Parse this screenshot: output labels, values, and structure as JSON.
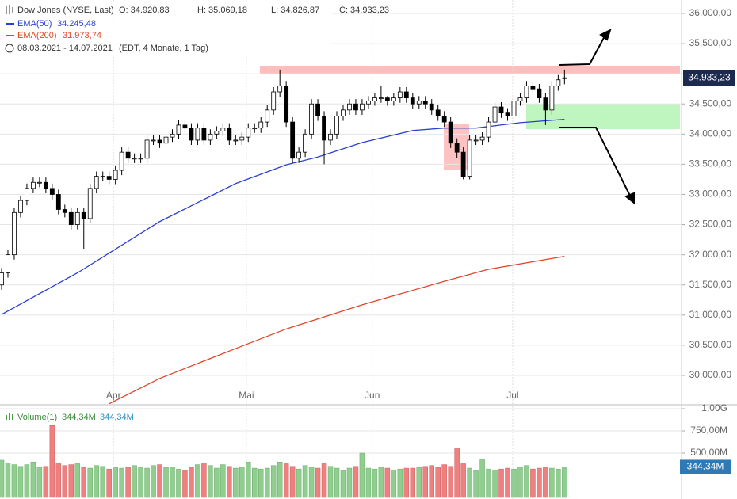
{
  "chart_data": [
    {
      "type": "candlestick",
      "title": "Dow Jones (NYSE, Last)",
      "ohlc_labels": [
        "O: 34.920,83",
        "H: 35.069,18",
        "L: 34.826,87",
        "C: 34.933,23"
      ],
      "period": "08.03.2021 - 14.07.2021",
      "period_note": "(EDT, 4 Monate, 1 Tag)",
      "last_label": "34.933,23",
      "up_color": "#ffffff",
      "down_color": "#000000",
      "candles": [
        [
          31500,
          31780,
          31420,
          31700
        ],
        [
          31700,
          32080,
          31620,
          32000
        ],
        [
          32000,
          32780,
          31920,
          32700
        ],
        [
          32700,
          32980,
          32620,
          32900
        ],
        [
          32900,
          33180,
          32820,
          33100
        ],
        [
          33100,
          33280,
          33020,
          33200
        ],
        [
          33200,
          33280,
          33120,
          33200
        ],
        [
          33200,
          33280,
          33020,
          33100
        ],
        [
          33100,
          33180,
          32920,
          33000
        ],
        [
          33000,
          33080,
          32670,
          32750
        ],
        [
          32750,
          32830,
          32620,
          32700
        ],
        [
          32700,
          32780,
          32420,
          32500
        ],
        [
          32500,
          32780,
          32420,
          32700
        ],
        [
          32700,
          32780,
          32100,
          32600
        ],
        [
          32600,
          33180,
          32520,
          33100
        ],
        [
          33100,
          33380,
          33020,
          33300
        ],
        [
          33300,
          33380,
          33220,
          33300
        ],
        [
          33300,
          33380,
          33170,
          33250
        ],
        [
          33250,
          33480,
          33170,
          33400
        ],
        [
          33400,
          33780,
          33320,
          33700
        ],
        [
          33700,
          33780,
          33520,
          33600
        ],
        [
          33600,
          33680,
          33520,
          33600
        ],
        [
          33600,
          33680,
          33520,
          33600
        ],
        [
          33600,
          33980,
          33520,
          33900
        ],
        [
          33900,
          33980,
          33820,
          33900
        ],
        [
          33900,
          33980,
          33770,
          33850
        ],
        [
          33850,
          34030,
          33770,
          33950
        ],
        [
          33950,
          34080,
          33870,
          34000
        ],
        [
          34000,
          34230,
          33920,
          34150
        ],
        [
          34150,
          34230,
          34020,
          34100
        ],
        [
          34100,
          34180,
          33820,
          33900
        ],
        [
          33900,
          34180,
          33820,
          34100
        ],
        [
          34100,
          34180,
          33820,
          33900
        ],
        [
          33900,
          34080,
          33820,
          34000
        ],
        [
          34000,
          34130,
          33920,
          34050
        ],
        [
          34050,
          34180,
          33970,
          34100
        ],
        [
          34100,
          34180,
          33820,
          33900
        ],
        [
          33900,
          33980,
          33820,
          33900
        ],
        [
          33900,
          34030,
          33820,
          33950
        ],
        [
          33950,
          34180,
          33870,
          34100
        ],
        [
          34100,
          34180,
          34020,
          34100
        ],
        [
          34100,
          34280,
          34020,
          34200
        ],
        [
          34200,
          34480,
          34120,
          34400
        ],
        [
          34400,
          34780,
          34320,
          34700
        ],
        [
          34700,
          35070,
          34620,
          34800
        ],
        [
          34800,
          34880,
          34120,
          34200
        ],
        [
          34200,
          34280,
          33520,
          33600
        ],
        [
          33600,
          33780,
          33520,
          33700
        ],
        [
          33700,
          34080,
          33620,
          34000
        ],
        [
          34000,
          34580,
          33920,
          34500
        ],
        [
          34500,
          34580,
          34220,
          34300
        ],
        [
          34300,
          34380,
          33500,
          33900
        ],
        [
          33900,
          34080,
          33820,
          34000
        ],
        [
          34000,
          34380,
          33920,
          34300
        ],
        [
          34300,
          34480,
          34220,
          34400
        ],
        [
          34400,
          34580,
          34320,
          34500
        ],
        [
          34500,
          34580,
          34320,
          34400
        ],
        [
          34400,
          34580,
          34320,
          34500
        ],
        [
          34500,
          34630,
          34420,
          34550
        ],
        [
          34550,
          34680,
          34470,
          34600
        ],
        [
          34600,
          34800,
          34520,
          34600
        ],
        [
          34600,
          34630,
          34470,
          34550
        ],
        [
          34550,
          34680,
          34470,
          34600
        ],
        [
          34600,
          34780,
          34520,
          34700
        ],
        [
          34700,
          34780,
          34520,
          34600
        ],
        [
          34600,
          34680,
          34420,
          34500
        ],
        [
          34500,
          34630,
          34420,
          34550
        ],
        [
          34550,
          34630,
          34420,
          34500
        ],
        [
          34500,
          34580,
          34320,
          34400
        ],
        [
          34400,
          34480,
          34220,
          34300
        ],
        [
          34300,
          34380,
          34120,
          34200
        ],
        [
          34200,
          34280,
          33770,
          33850
        ],
        [
          33850,
          33930,
          33600,
          33700
        ],
        [
          33700,
          33780,
          33250,
          33300
        ],
        [
          33300,
          33980,
          33250,
          33900
        ],
        [
          33900,
          33980,
          33820,
          33900
        ],
        [
          33900,
          34030,
          33820,
          33950
        ],
        [
          33950,
          34280,
          33870,
          34200
        ],
        [
          34200,
          34530,
          34120,
          34450
        ],
        [
          34450,
          34530,
          34270,
          34350
        ],
        [
          34350,
          34430,
          34220,
          34300
        ],
        [
          34300,
          34630,
          34220,
          34550
        ],
        [
          34550,
          34680,
          34470,
          34600
        ],
        [
          34600,
          34880,
          34520,
          34800
        ],
        [
          34800,
          34880,
          34670,
          34750
        ],
        [
          34750,
          34830,
          34520,
          34600
        ],
        [
          34600,
          34680,
          34150,
          34400
        ],
        [
          34400,
          34880,
          34320,
          34800
        ],
        [
          34800,
          34980,
          34720,
          34900
        ],
        [
          34920.83,
          35069.18,
          34826.87,
          34933.23
        ]
      ],
      "series": [
        {
          "name": "EMA(50)",
          "color": "#2a3fd0",
          "value_label": "34.245,48",
          "x": [
            0,
            12,
            25,
            37,
            45,
            50,
            57,
            65,
            70,
            75,
            82,
            89
          ],
          "values": [
            31010,
            31700,
            32550,
            33180,
            33490,
            33620,
            33860,
            34060,
            34100,
            34100,
            34190,
            34245.48
          ]
        },
        {
          "name": "EMA(200)",
          "color": "#e0452a",
          "value_label": "31.973,74",
          "x": [
            17,
            25,
            37,
            45,
            57,
            70,
            77,
            89
          ],
          "values": [
            29530,
            29950,
            30445,
            30770,
            31170,
            31560,
            31760,
            31973.74
          ]
        }
      ],
      "xlim": [
        -0.25,
        107.5
      ],
      "ylim": [
        29527,
        36223
      ],
      "xticks": [
        {
          "value": 17.7,
          "label": "Apr"
        },
        {
          "value": 38.7,
          "label": "Mai"
        },
        {
          "value": 58.6,
          "label": "Jun"
        },
        {
          "value": 80.8,
          "label": "Jul"
        }
      ],
      "yticks": [
        {
          "value": 30000,
          "label": "30.000,00"
        },
        {
          "value": 30500,
          "label": "30.500,00"
        },
        {
          "value": 31000,
          "label": "31.000,00"
        },
        {
          "value": 31500,
          "label": "31.500,00"
        },
        {
          "value": 32000,
          "label": "32.000,00"
        },
        {
          "value": 32500,
          "label": "32.500,00"
        },
        {
          "value": 33000,
          "label": "33.000,00"
        },
        {
          "value": 33500,
          "label": "33.500,00"
        },
        {
          "value": 34000,
          "label": "34.000,00"
        },
        {
          "value": 34500,
          "label": "34.500,00"
        },
        {
          "value": 35000,
          "label": "35.000,00"
        },
        {
          "value": 35500,
          "label": "35.500,00"
        },
        {
          "value": 36000,
          "label": "36.000,00"
        }
      ],
      "grid": true
    },
    {
      "type": "bar",
      "title": "Volume(1)",
      "legend_labels": [
        "344,34M",
        "344,34M"
      ],
      "last_label": "344,34M",
      "up_color": "#8fce8f",
      "down_color": "#ef8080",
      "values": [
        420,
        390,
        370,
        350,
        370,
        400,
        340,
        350,
        810,
        380,
        360,
        370,
        380,
        340,
        330,
        360,
        350,
        320,
        340,
        330,
        340,
        360,
        340,
        330,
        360,
        370,
        340,
        340,
        320,
        300,
        340,
        370,
        380,
        360,
        330,
        370,
        350,
        330,
        340,
        400,
        330,
        320,
        330,
        360,
        400,
        380,
        350,
        320,
        360,
        340,
        330,
        380,
        350,
        330,
        300,
        330,
        350,
        500,
        330,
        320,
        340,
        330,
        310,
        320,
        330,
        330,
        340,
        350,
        360,
        340,
        370,
        350,
        560,
        380,
        330,
        300,
        430,
        320,
        310,
        320,
        330,
        320,
        340,
        360,
        320,
        330,
        340,
        330,
        320,
        344.34
      ],
      "ylim": [
        0,
        1027
      ],
      "yticks": [
        {
          "value": 500,
          "label": "500,00M"
        },
        {
          "value": 750,
          "label": "750,00M"
        },
        {
          "value": 1000,
          "label": "1,00G"
        }
      ]
    }
  ]
}
